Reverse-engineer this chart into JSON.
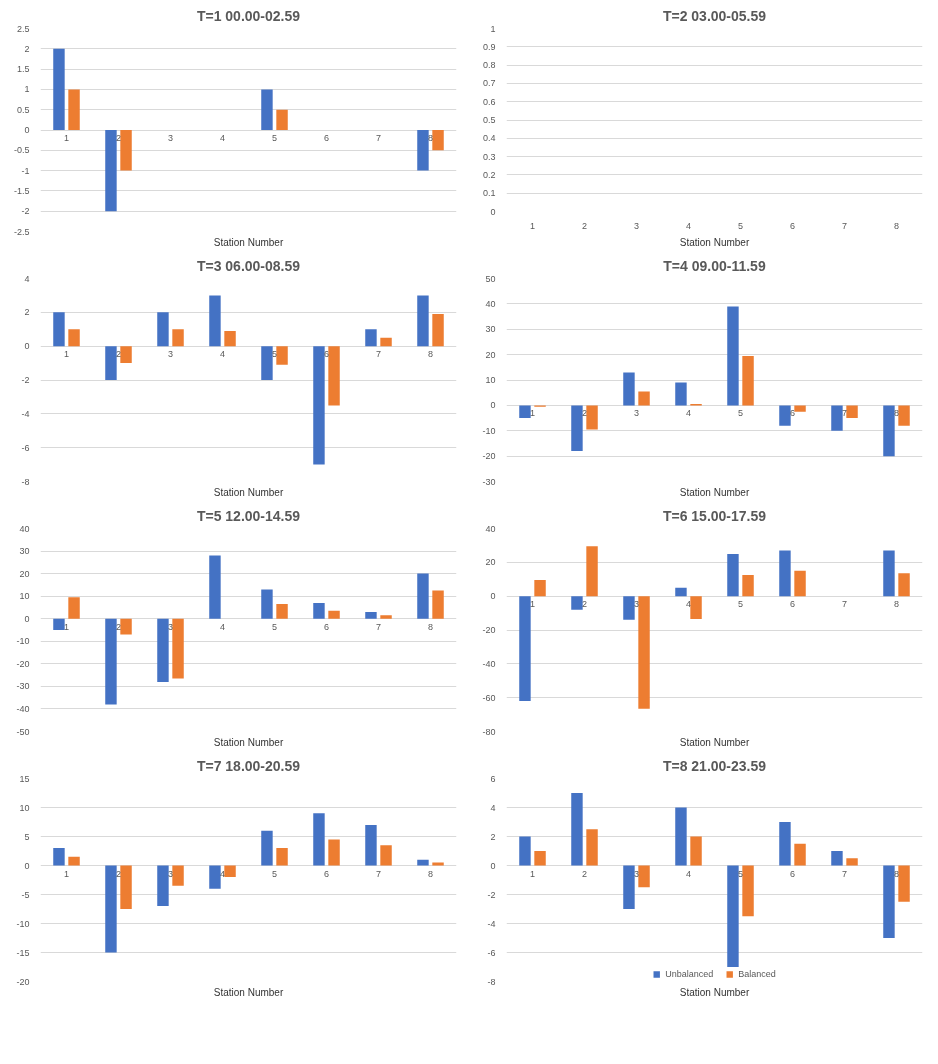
{
  "chart_data": [
    {
      "type": "bar",
      "title": "T=1 00.00-02.59",
      "xlabel": "Station Number",
      "categories": [
        "1",
        "2",
        "3",
        "4",
        "5",
        "6",
        "7",
        "8"
      ],
      "ylim": [
        -2.5,
        2.5
      ],
      "yticks": [
        -2.5,
        -2,
        -1.5,
        -1,
        -0.5,
        0,
        0.5,
        1,
        1.5,
        2,
        2.5
      ],
      "grid": "y",
      "legend": false,
      "series": [
        {
          "color": "#4472c4",
          "values": [
            2,
            -2,
            0,
            0,
            1,
            0,
            0,
            -1
          ]
        },
        {
          "color": "#ed7d31",
          "values": [
            1,
            -1,
            0,
            0,
            0.5,
            0,
            0,
            -0.5
          ]
        }
      ]
    },
    {
      "type": "bar",
      "title": "T=2 03.00-05.59",
      "xlabel": "Station Number",
      "categories": [
        "1",
        "2",
        "3",
        "4",
        "5",
        "6",
        "7",
        "8"
      ],
      "ylim": [
        0,
        1
      ],
      "yticks": [
        0,
        0.1,
        0.2,
        0.3,
        0.4,
        0.5,
        0.6,
        0.7,
        0.8,
        0.9,
        1
      ],
      "grid": "y",
      "legend": false,
      "series": [
        {
          "color": "#4472c4",
          "values": [
            0,
            0,
            0,
            0,
            0,
            0,
            0,
            0
          ]
        },
        {
          "color": "#ed7d31",
          "values": [
            0,
            0,
            0,
            0,
            0,
            0,
            0,
            0
          ]
        }
      ]
    },
    {
      "type": "bar",
      "title": "T=3 06.00-08.59",
      "xlabel": "Station Number",
      "categories": [
        "1",
        "2",
        "3",
        "4",
        "5",
        "6",
        "7",
        "8"
      ],
      "ylim": [
        -8,
        4
      ],
      "yticks": [
        -8,
        -6,
        -4,
        -2,
        0,
        2,
        4
      ],
      "grid": "y",
      "legend": false,
      "series": [
        {
          "color": "#4472c4",
          "values": [
            2,
            -2,
            2,
            3,
            -2,
            -7,
            1,
            3
          ]
        },
        {
          "color": "#ed7d31",
          "values": [
            1,
            -1,
            1,
            0.9,
            -1.1,
            -3.5,
            0.5,
            1.9
          ]
        }
      ]
    },
    {
      "type": "bar",
      "title": "T=4 09.00-11.59",
      "xlabel": "Station Number",
      "categories": [
        "1",
        "2",
        "3",
        "4",
        "5",
        "6",
        "7",
        "8"
      ],
      "ylim": [
        -30,
        50
      ],
      "yticks": [
        -30,
        -20,
        -10,
        0,
        10,
        20,
        30,
        40,
        50
      ],
      "grid": "y",
      "legend": false,
      "series": [
        {
          "color": "#4472c4",
          "values": [
            -5,
            -18,
            13,
            9,
            39,
            -8,
            -10,
            -20
          ]
        },
        {
          "color": "#ed7d31",
          "values": [
            -0.5,
            -9.5,
            5.5,
            0.5,
            19.5,
            -2.5,
            -5,
            -8
          ]
        }
      ]
    },
    {
      "type": "bar",
      "title": "T=5 12.00-14.59",
      "xlabel": "Station Number",
      "categories": [
        "1",
        "2",
        "3",
        "4",
        "5",
        "6",
        "7",
        "8"
      ],
      "ylim": [
        -50,
        40
      ],
      "yticks": [
        -50,
        -40,
        -30,
        -20,
        -10,
        0,
        10,
        20,
        30,
        40
      ],
      "grid": "y",
      "legend": false,
      "series": [
        {
          "color": "#4472c4",
          "values": [
            -5,
            -38,
            -28,
            28,
            13,
            7,
            3,
            20
          ]
        },
        {
          "color": "#ed7d31",
          "values": [
            9.5,
            -7,
            -26.5,
            0,
            6.5,
            3.5,
            1.5,
            12.5
          ]
        }
      ]
    },
    {
      "type": "bar",
      "title": "T=6 15.00-17.59",
      "xlabel": "Station Number",
      "categories": [
        "1",
        "2",
        "3",
        "4",
        "5",
        "6",
        "7",
        "8"
      ],
      "ylim": [
        -80,
        40
      ],
      "yticks": [
        -80,
        -60,
        -40,
        -20,
        0,
        20,
        40
      ],
      "grid": "y",
      "legend": false,
      "series": [
        {
          "color": "#4472c4",
          "values": [
            -62,
            -8,
            -14,
            5,
            25,
            27,
            0,
            27
          ]
        },
        {
          "color": "#ed7d31",
          "values": [
            9.5,
            29.5,
            -66.5,
            -13.5,
            12.5,
            15,
            0,
            13.5
          ]
        }
      ]
    },
    {
      "type": "bar",
      "title": "T=7 18.00-20.59",
      "xlabel": "Station Number",
      "categories": [
        "1",
        "2",
        "3",
        "4",
        "5",
        "6",
        "7",
        "8"
      ],
      "ylim": [
        -20,
        15
      ],
      "yticks": [
        -20,
        -15,
        -10,
        -5,
        0,
        5,
        10,
        15
      ],
      "grid": "y",
      "legend": false,
      "series": [
        {
          "color": "#4472c4",
          "values": [
            3,
            -15,
            -7,
            -4,
            6,
            9,
            7,
            1
          ]
        },
        {
          "color": "#ed7d31",
          "values": [
            1.5,
            -7.5,
            -3.5,
            -2,
            3,
            4.5,
            3.5,
            0.5
          ]
        }
      ]
    },
    {
      "type": "bar",
      "title": "T=8 21.00-23.59",
      "xlabel": "Station Number",
      "categories": [
        "1",
        "2",
        "3",
        "4",
        "5",
        "6",
        "7",
        "8"
      ],
      "ylim": [
        -8,
        6
      ],
      "yticks": [
        -8,
        -6,
        -4,
        -2,
        0,
        2,
        4,
        6
      ],
      "grid": "y",
      "legend": "bottom",
      "series": [
        {
          "name": "Unbalanced",
          "color": "#4472c4",
          "values": [
            2,
            5,
            -3,
            4,
            -7,
            3,
            1,
            -5
          ]
        },
        {
          "name": "Balanced",
          "color": "#ed7d31",
          "values": [
            1,
            2.5,
            -1.5,
            2,
            -3.5,
            1.5,
            0.5,
            -2.5
          ]
        }
      ]
    }
  ]
}
